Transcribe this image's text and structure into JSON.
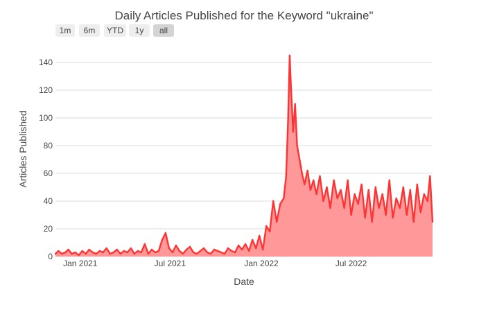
{
  "title": "Daily Articles Published for the Keyword \"ukraine\"",
  "range_selector": {
    "buttons": [
      "1m",
      "6m",
      "YTD",
      "1y",
      "all"
    ],
    "active": "all"
  },
  "colors": {
    "line": "#ff3333",
    "fill": "#ff9999",
    "grid": "#dddddd",
    "axis_text": "#444444"
  },
  "chart_data": {
    "type": "area",
    "title": "Daily Articles Published for the Keyword \"ukraine\"",
    "xlabel": "Date",
    "ylabel": "Articles Published",
    "x_range": [
      "2020-11-12",
      "2022-12-12"
    ],
    "ylim": [
      0,
      150
    ],
    "grid": true,
    "y_ticks": [
      0,
      20,
      40,
      60,
      80,
      100,
      120,
      140
    ],
    "x_ticks": [
      {
        "date": "2021-01-01",
        "label": "Jan 2021"
      },
      {
        "date": "2021-07-01",
        "label": "Jul 2021"
      },
      {
        "date": "2022-01-01",
        "label": "Jan 2022"
      },
      {
        "date": "2022-07-01",
        "label": "Jul 2022"
      }
    ],
    "series": [
      {
        "x": [
          "2020-11-12",
          "2020-11-18",
          "2020-11-25",
          "2020-12-02",
          "2020-12-08",
          "2020-12-15",
          "2020-12-22",
          "2020-12-29",
          "2021-01-05",
          "2021-01-12",
          "2021-01-19",
          "2021-01-26",
          "2021-02-02",
          "2021-02-09",
          "2021-02-16",
          "2021-02-23",
          "2021-03-02",
          "2021-03-09",
          "2021-03-16",
          "2021-03-23",
          "2021-03-30",
          "2021-04-06",
          "2021-04-13",
          "2021-04-20",
          "2021-04-27",
          "2021-05-04",
          "2021-05-11",
          "2021-05-18",
          "2021-05-25",
          "2021-06-01",
          "2021-06-08",
          "2021-06-15",
          "2021-06-22",
          "2021-06-29",
          "2021-07-06",
          "2021-07-13",
          "2021-07-20",
          "2021-07-27",
          "2021-08-03",
          "2021-08-10",
          "2021-08-17",
          "2021-08-24",
          "2021-08-31",
          "2021-09-07",
          "2021-09-14",
          "2021-09-21",
          "2021-09-28",
          "2021-10-05",
          "2021-10-12",
          "2021-10-19",
          "2021-10-26",
          "2021-11-02",
          "2021-11-09",
          "2021-11-16",
          "2021-11-23",
          "2021-11-30",
          "2021-12-07",
          "2021-12-14",
          "2021-12-21",
          "2021-12-28",
          "2022-01-04",
          "2022-01-11",
          "2022-01-18",
          "2022-01-25",
          "2022-02-01",
          "2022-02-08",
          "2022-02-15",
          "2022-02-20",
          "2022-02-24",
          "2022-02-27",
          "2022-03-02",
          "2022-03-06",
          "2022-03-10",
          "2022-03-14",
          "2022-03-19",
          "2022-03-24",
          "2022-03-29",
          "2022-04-04",
          "2022-04-10",
          "2022-04-16",
          "2022-04-22",
          "2022-04-29",
          "2022-05-06",
          "2022-05-13",
          "2022-05-20",
          "2022-05-27",
          "2022-06-03",
          "2022-06-10",
          "2022-06-17",
          "2022-06-24",
          "2022-07-01",
          "2022-07-08",
          "2022-07-15",
          "2022-07-22",
          "2022-07-29",
          "2022-08-05",
          "2022-08-12",
          "2022-08-19",
          "2022-08-26",
          "2022-09-02",
          "2022-09-09",
          "2022-09-16",
          "2022-09-23",
          "2022-09-30",
          "2022-10-07",
          "2022-10-14",
          "2022-10-21",
          "2022-10-28",
          "2022-11-04",
          "2022-11-11",
          "2022-11-18",
          "2022-11-25",
          "2022-12-02",
          "2022-12-07",
          "2022-12-12"
        ],
        "y": [
          2,
          4,
          2,
          3,
          5,
          2,
          3,
          1,
          4,
          2,
          5,
          3,
          2,
          4,
          3,
          6,
          2,
          3,
          5,
          2,
          4,
          3,
          6,
          2,
          4,
          3,
          9,
          2,
          5,
          3,
          4,
          12,
          17,
          6,
          3,
          8,
          4,
          2,
          5,
          7,
          3,
          2,
          4,
          6,
          3,
          2,
          5,
          4,
          3,
          2,
          6,
          4,
          3,
          8,
          5,
          9,
          4,
          12,
          6,
          15,
          5,
          22,
          18,
          40,
          25,
          38,
          42,
          58,
          100,
          145,
          120,
          90,
          110,
          80,
          70,
          60,
          52,
          62,
          48,
          55,
          45,
          58,
          40,
          50,
          35,
          55,
          42,
          48,
          35,
          55,
          30,
          45,
          38,
          52,
          28,
          48,
          25,
          50,
          35,
          45,
          30,
          55,
          28,
          42,
          35,
          50,
          30,
          48,
          25,
          52,
          32,
          45,
          40,
          58,
          25
        ]
      }
    ]
  }
}
